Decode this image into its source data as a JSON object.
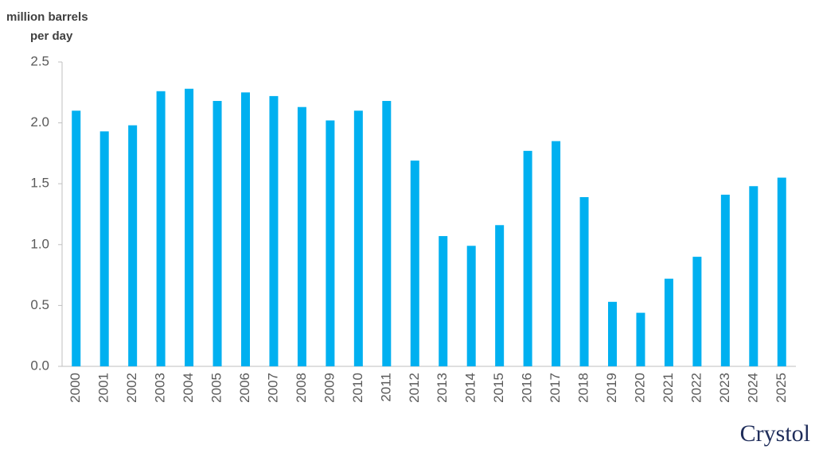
{
  "chart_data": {
    "type": "bar",
    "ylabel": [
      "million barrels",
      "per day"
    ],
    "categories": [
      "2000",
      "2001",
      "2002",
      "2003",
      "2004",
      "2005",
      "2006",
      "2007",
      "2008",
      "2009",
      "2010",
      "2011",
      "2012",
      "2013",
      "2014",
      "2015",
      "2016",
      "2017",
      "2018",
      "2019",
      "2020",
      "2021",
      "2022",
      "2023",
      "2024",
      "2025"
    ],
    "values": [
      2.1,
      1.93,
      1.98,
      2.26,
      2.28,
      2.18,
      2.25,
      2.22,
      2.13,
      2.02,
      2.1,
      2.18,
      1.69,
      1.07,
      0.99,
      1.16,
      1.77,
      1.85,
      1.39,
      0.53,
      0.44,
      0.72,
      0.9,
      1.41,
      1.48,
      1.55
    ],
    "color": "#00b0f0",
    "ylim": [
      0,
      2.5
    ],
    "yticks": [
      {
        "value": 0,
        "label": "0.0"
      },
      0.5,
      {
        "value": 1,
        "label": "1.0"
      },
      1.5,
      {
        "value": 2,
        "label": "2.0"
      },
      2.5
    ],
    "grid": false
  },
  "logo": "Crystol"
}
